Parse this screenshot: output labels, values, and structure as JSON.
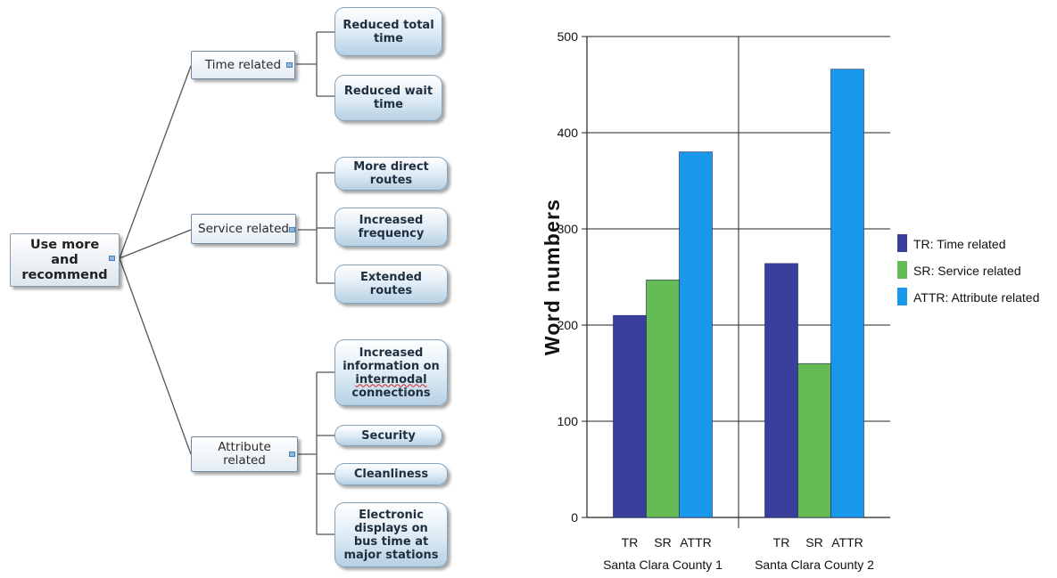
{
  "mindmap": {
    "root": "Use more\nand\nrecommend",
    "branches": [
      {
        "label": "Time related",
        "leaves": [
          "Reduced total\ntime",
          "Reduced wait\ntime"
        ]
      },
      {
        "label": "Service related",
        "leaves": [
          "More direct\nroutes",
          "Increased\nfrequency",
          "Extended\nroutes"
        ]
      },
      {
        "label": "Attribute\nrelated",
        "leaves": [
          "Increased\ninformation on\nintermodal\nconnections",
          "Security",
          "Cleanliness",
          "Electronic\ndisplays on\nbus time at\nmajor stations"
        ]
      }
    ]
  },
  "chart_data": {
    "type": "bar",
    "ylabel": "Word numbers",
    "ylim": [
      0,
      500
    ],
    "yticks": [
      "0",
      "100",
      "200",
      "300",
      "400",
      "500"
    ],
    "groups": [
      "Santa Clara County 1",
      "Santa Clara County 2"
    ],
    "bar_labels": [
      "TR",
      "SR",
      "ATTR"
    ],
    "series": [
      {
        "name": "TR: Time related",
        "color": "#3a3f9c",
        "values": [
          210,
          264
        ]
      },
      {
        "name": "SR: Service related",
        "color": "#66bb55",
        "values": [
          247,
          160
        ]
      },
      {
        "name": "ATTR: Attribute related",
        "color": "#1a98ec",
        "values": [
          380,
          466
        ]
      }
    ],
    "grid": true,
    "legend": "right"
  }
}
